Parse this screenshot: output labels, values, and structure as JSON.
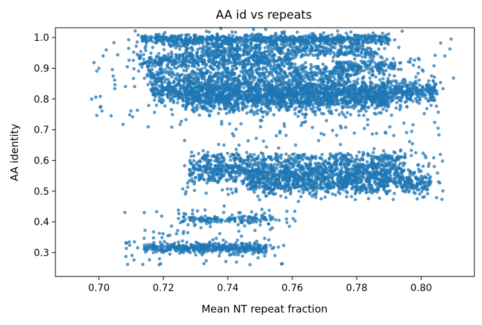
{
  "chart_data": {
    "type": "scatter",
    "title": "AA id vs repeats",
    "xlabel": "Mean NT repeat fraction",
    "ylabel": "AA identity",
    "xlim": [
      0.6865,
      0.8165
    ],
    "ylim": [
      0.222,
      1.032
    ],
    "xticks": [
      0.7,
      0.72,
      0.74,
      0.76,
      0.78,
      0.8
    ],
    "xtick_labels": [
      "0.70",
      "0.72",
      "0.74",
      "0.76",
      "0.78",
      "0.80"
    ],
    "yticks": [
      0.3,
      0.4,
      0.5,
      0.6,
      0.7,
      0.8,
      0.9,
      1.0
    ],
    "ytick_labels": [
      "0.3",
      "0.4",
      "0.5",
      "0.6",
      "0.7",
      "0.8",
      "0.9",
      "1.0"
    ],
    "grid": false,
    "marker_color": "#1f77b4",
    "marker_opacity": 0.75,
    "clusters": [
      {
        "x_range": [
          0.713,
          0.79
        ],
        "y": 0.995,
        "y_spread": 0.008,
        "count": 700
      },
      {
        "x_range": [
          0.722,
          0.782
        ],
        "y": 0.97,
        "y_spread": 0.01,
        "count": 250
      },
      {
        "x_range": [
          0.732,
          0.788
        ],
        "y": 0.95,
        "y_spread": 0.008,
        "count": 200
      },
      {
        "x_range": [
          0.712,
          0.76
        ],
        "y": 0.925,
        "y_spread": 0.012,
        "count": 400
      },
      {
        "x_range": [
          0.773,
          0.792
        ],
        "y": 0.905,
        "y_spread": 0.012,
        "count": 150
      },
      {
        "x_range": [
          0.715,
          0.778
        ],
        "y": 0.875,
        "y_spread": 0.018,
        "count": 550
      },
      {
        "x_range": [
          0.716,
          0.805
        ],
        "y": 0.825,
        "y_spread": 0.018,
        "count": 1400
      },
      {
        "x_range": [
          0.726,
          0.79
        ],
        "y": 0.795,
        "y_spread": 0.02,
        "count": 900
      },
      {
        "x_range": [
          0.732,
          0.795
        ],
        "y": 0.61,
        "y_spread": 0.008,
        "count": 200
      },
      {
        "x_range": [
          0.728,
          0.795
        ],
        "y": 0.565,
        "y_spread": 0.02,
        "count": 900
      },
      {
        "x_range": [
          0.746,
          0.803
        ],
        "y": 0.528,
        "y_spread": 0.018,
        "count": 700
      },
      {
        "x_range": [
          0.725,
          0.755
        ],
        "y": 0.41,
        "y_spread": 0.006,
        "count": 120
      },
      {
        "x_range": [
          0.714,
          0.752
        ],
        "y": 0.315,
        "y_spread": 0.008,
        "count": 380
      }
    ],
    "scatter_outliers": {
      "x_range": [
        0.692,
        0.812
      ],
      "y_range": [
        0.25,
        1.0
      ],
      "count": 500
    },
    "noise": {
      "count": 450
    }
  }
}
